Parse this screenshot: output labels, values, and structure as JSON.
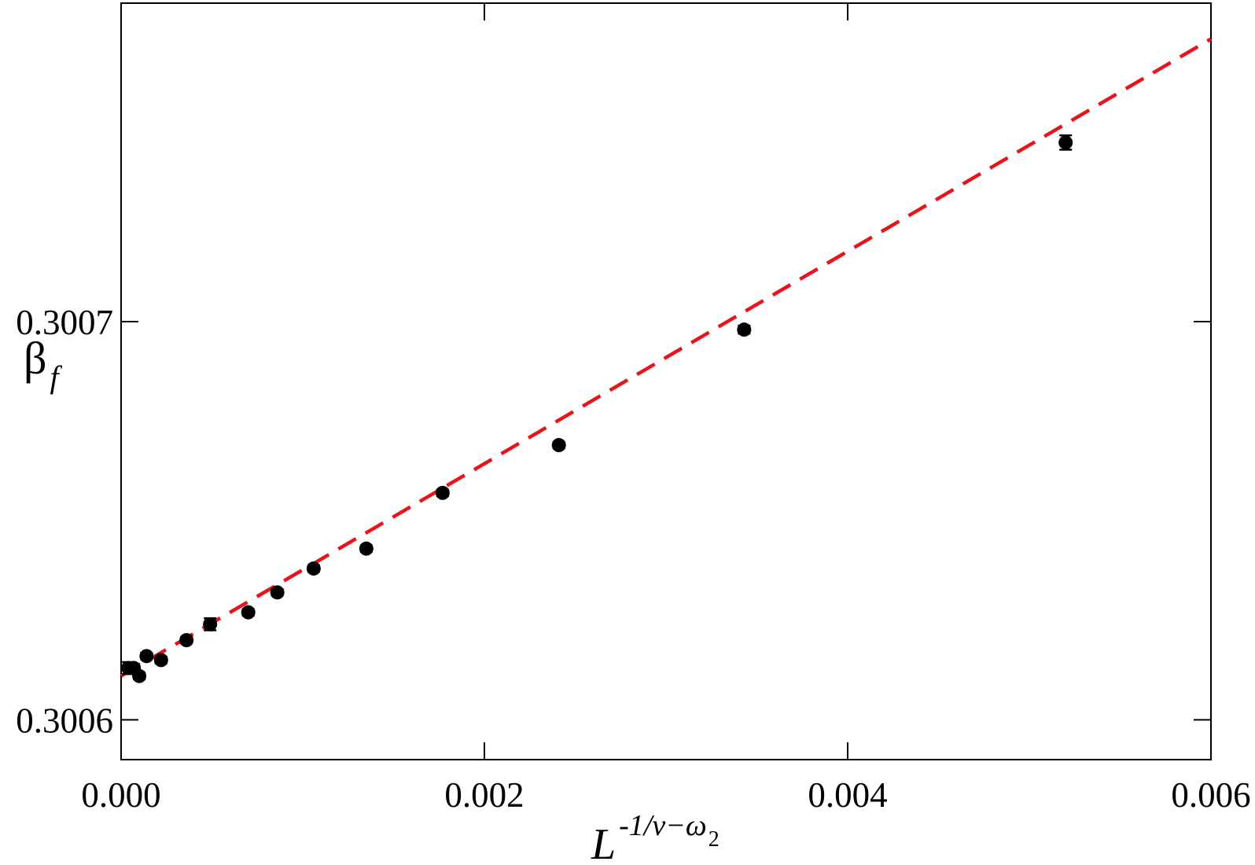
{
  "chart_data": {
    "type": "scatter",
    "xlabel": {
      "base": "L",
      "superscript": "-1/ν−ω",
      "subscript": "2"
    },
    "ylabel": {
      "base": "β",
      "subscript": "f"
    },
    "xlim": [
      0.0,
      0.006
    ],
    "ylim": [
      0.30059,
      0.30078
    ],
    "x_ticks": [
      {
        "value": 0.0,
        "label": "0.000"
      },
      {
        "value": 0.002,
        "label": "0.002"
      },
      {
        "value": 0.004,
        "label": "0.004"
      },
      {
        "value": 0.006,
        "label": "0.006"
      }
    ],
    "y_ticks": [
      {
        "value": 0.3006,
        "label": "0.3006"
      },
      {
        "value": 0.3007,
        "label": "0.3007"
      }
    ],
    "grid": false,
    "colors": {
      "points": "#000000",
      "fit_line": "#e8141b",
      "axes": "#000000"
    },
    "series": [
      {
        "kind": "points-with-errorbars",
        "x": [
          4e-05,
          7e-05,
          0.0001,
          0.00014,
          0.00022,
          0.00036,
          0.00049,
          0.0007,
          0.00086,
          0.00106,
          0.00135,
          0.00177,
          0.00241,
          0.00343,
          0.0052
        ],
        "y": [
          0.300613,
          0.300613,
          0.300611,
          0.300616,
          0.300615,
          0.30062,
          0.300624,
          0.300627,
          0.300632,
          0.300638,
          0.300643,
          0.300657,
          0.300669,
          0.300698,
          0.300745
        ],
        "yerr": [
          1.5e-06,
          1e-06,
          8e-07,
          8e-07,
          8e-07,
          8e-07,
          1.5e-06,
          8e-07,
          8e-07,
          8e-07,
          8e-07,
          8e-07,
          8e-07,
          1e-06,
          1.8e-06
        ]
      },
      {
        "kind": "fit-line",
        "style": "dashed",
        "x": [
          0.0,
          0.006
        ],
        "y": [
          0.300611,
          0.300771
        ]
      }
    ]
  }
}
